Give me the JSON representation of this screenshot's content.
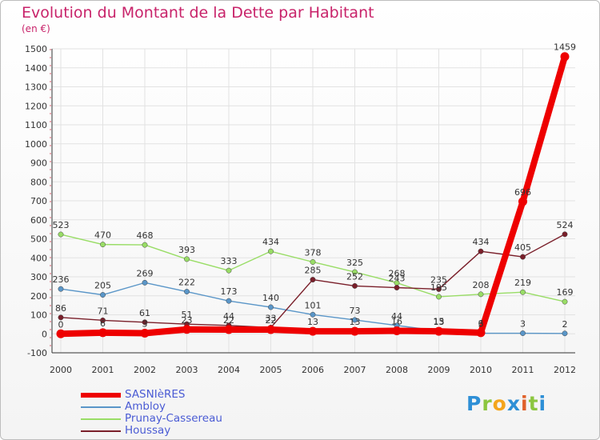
{
  "header": {
    "title": "Evolution du Montant de la Dette par Habitant",
    "subtitle": "(en €)"
  },
  "logo": {
    "text": "Proxiti"
  },
  "chart_data": {
    "type": "line",
    "title": "Evolution du Montant de la Dette par Habitant",
    "subtitle": "(en €)",
    "xlabel": "",
    "ylabel": "",
    "categories": [
      "2000",
      "2001",
      "2002",
      "2003",
      "2004",
      "2005",
      "2006",
      "2007",
      "2008",
      "2009",
      "2010",
      "2011",
      "2012"
    ],
    "yticks": [
      "-100",
      "0",
      "100",
      "200",
      "300",
      "400",
      "500",
      "600",
      "700",
      "800",
      "900",
      "1000",
      "1100",
      "1200",
      "1300",
      "1400",
      "1500"
    ],
    "ylim": [
      -100,
      1500
    ],
    "grid": true,
    "legend_position": "bottom-left",
    "series": [
      {
        "name": "SASNIèRES",
        "color": "#ee0000",
        "values": [
          0,
          6,
          3,
          23,
          22,
          22,
          13,
          13,
          16,
          13,
          6,
          696,
          1459
        ],
        "labels": [
          "0",
          "6",
          "3",
          "23",
          "22",
          "22",
          "13",
          "13",
          "16",
          "13",
          "6",
          "696",
          "1459"
        ]
      },
      {
        "name": "Ambloy",
        "color": "#5a96c8",
        "values": [
          236,
          205,
          269,
          222,
          173,
          140,
          101,
          73,
          44,
          15,
          3,
          3,
          2
        ],
        "labels": [
          "236",
          "205",
          "269",
          "222",
          "173",
          "140",
          "101",
          "73",
          "44",
          "15",
          "3",
          "3",
          "2"
        ]
      },
      {
        "name": "Prunay-Cassereau",
        "color": "#99dd66",
        "values": [
          523,
          470,
          468,
          393,
          333,
          434,
          378,
          325,
          268,
          195,
          208,
          219,
          169
        ],
        "labels": [
          "523",
          "470",
          "468",
          "393",
          "333",
          "434",
          "378",
          "325",
          "268",
          "195",
          "208",
          "219",
          "169"
        ]
      },
      {
        "name": "Houssay",
        "color": "#7a1f2a",
        "values": [
          86,
          71,
          61,
          51,
          44,
          33,
          285,
          252,
          243,
          235,
          434,
          405,
          524
        ],
        "labels": [
          "86",
          "71",
          "61",
          "51",
          "44",
          "33",
          "285",
          "252",
          "243",
          "235",
          "434",
          "405",
          "524"
        ]
      }
    ]
  }
}
